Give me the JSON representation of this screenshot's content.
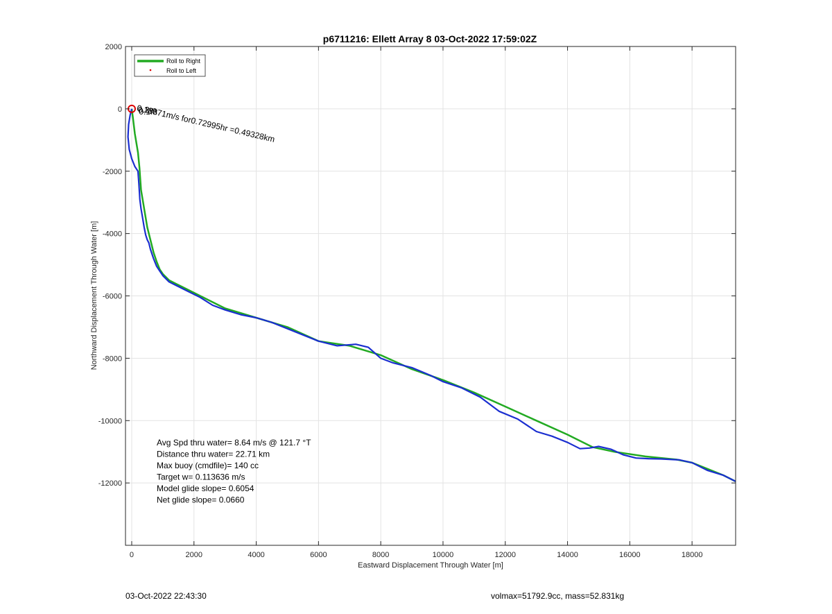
{
  "chart_data": {
    "type": "line",
    "title": "p6711216: Ellett Array 8 03-Oct-2022 17:59:02Z",
    "xlabel": "Eastward Displacement Through Water [m]",
    "ylabel": "Northward Displacement Through Water [m]",
    "xlim": [
      -200,
      19400
    ],
    "ylim": [
      -14000,
      2000
    ],
    "xticks": [
      0,
      2000,
      4000,
      6000,
      8000,
      10000,
      12000,
      14000,
      16000,
      18000
    ],
    "yticks": [
      2000,
      0,
      -2000,
      -4000,
      -6000,
      -8000,
      -10000,
      -12000
    ],
    "grid": true,
    "legend": {
      "position": "top-left",
      "entries": [
        {
          "label": "Roll to Right",
          "color": "#22aa22",
          "style": "line"
        },
        {
          "label": "Roll to Left",
          "color": "#dd0000",
          "style": "dot"
        }
      ]
    },
    "series": [
      {
        "color": "#22aa22",
        "x": [
          0,
          40,
          100,
          200,
          250,
          300,
          400,
          500,
          600,
          700,
          800,
          900,
          1000,
          1200,
          1500,
          2000,
          2500,
          3000,
          4000,
          5000,
          6000,
          7000,
          8000,
          9000,
          10000,
          11000,
          12000,
          13000,
          14000,
          14800,
          15500,
          16500,
          17500,
          18000,
          18500,
          19000,
          19400
        ],
        "y": [
          0,
          -300,
          -800,
          -1400,
          -1900,
          -2600,
          -3200,
          -3800,
          -4200,
          -4600,
          -4900,
          -5150,
          -5300,
          -5500,
          -5650,
          -5900,
          -6150,
          -6400,
          -6700,
          -7000,
          -7450,
          -7600,
          -7900,
          -8350,
          -8700,
          -9100,
          -9550,
          -10000,
          -10450,
          -10850,
          -11000,
          -11150,
          -11250,
          -11350,
          -11550,
          -11750,
          -11950
        ]
      },
      {
        "color": "#1a2ed0",
        "x": [
          0,
          -50,
          -100,
          -120,
          -80,
          0,
          100,
          200,
          230,
          260,
          300,
          350,
          400,
          450,
          500,
          550,
          600,
          700,
          800,
          900,
          1000,
          1200,
          1500,
          1800,
          2200,
          2600,
          3000,
          3500,
          4000,
          4500,
          5000,
          5500,
          6000,
          6600,
          7200,
          7600,
          8000,
          8400,
          9000,
          9600,
          10000,
          10600,
          11200,
          11800,
          12400,
          13000,
          13500,
          14000,
          14400,
          14700,
          15000,
          15400,
          15800,
          16200,
          16600,
          17000,
          17600,
          18000,
          18500,
          19000,
          19400
        ],
        "y": [
          0,
          -200,
          -500,
          -900,
          -1300,
          -1600,
          -1850,
          -2000,
          -2400,
          -2900,
          -3200,
          -3500,
          -3800,
          -4050,
          -4200,
          -4300,
          -4500,
          -4800,
          -5050,
          -5200,
          -5350,
          -5550,
          -5700,
          -5850,
          -6050,
          -6300,
          -6450,
          -6600,
          -6700,
          -6850,
          -7050,
          -7250,
          -7450,
          -7600,
          -7550,
          -7650,
          -8000,
          -8150,
          -8300,
          -8550,
          -8750,
          -8950,
          -9250,
          -9700,
          -9950,
          -10350,
          -10500,
          -10700,
          -10900,
          -10880,
          -10830,
          -10920,
          -11100,
          -11200,
          -11220,
          -11230,
          -11260,
          -11350,
          -11600,
          -11750,
          -11950
        ]
      }
    ],
    "marker": {
      "x": 0,
      "y": 0,
      "color": "#dd0000"
    },
    "annotations": [
      {
        "text": "0.18371m/s for0.72995hr =0.49328km",
        "x": 150,
        "y": -50,
        "rotate_deg": 13
      },
      {
        "text": "0.2m",
        "x": 200,
        "y": -120,
        "rotate_deg": 0
      },
      {
        "text": "0.1m",
        "x": 230,
        "y": -180,
        "rotate_deg": 0
      }
    ],
    "stats": [
      "Avg Spd thru water=  8.64 m/s @ 121.7 °T",
      "Distance thru water= 22.71 km",
      "Max buoy (cmdfile)= 140 cc",
      "Target w= 0.113636 m/s",
      "Model glide slope= 0.6054",
      "Net glide slope= 0.0660"
    ]
  },
  "footer": {
    "timestamp": "03-Oct-2022 22:43:30",
    "summary": "volmax=51792.9cc, mass=52.831kg"
  }
}
